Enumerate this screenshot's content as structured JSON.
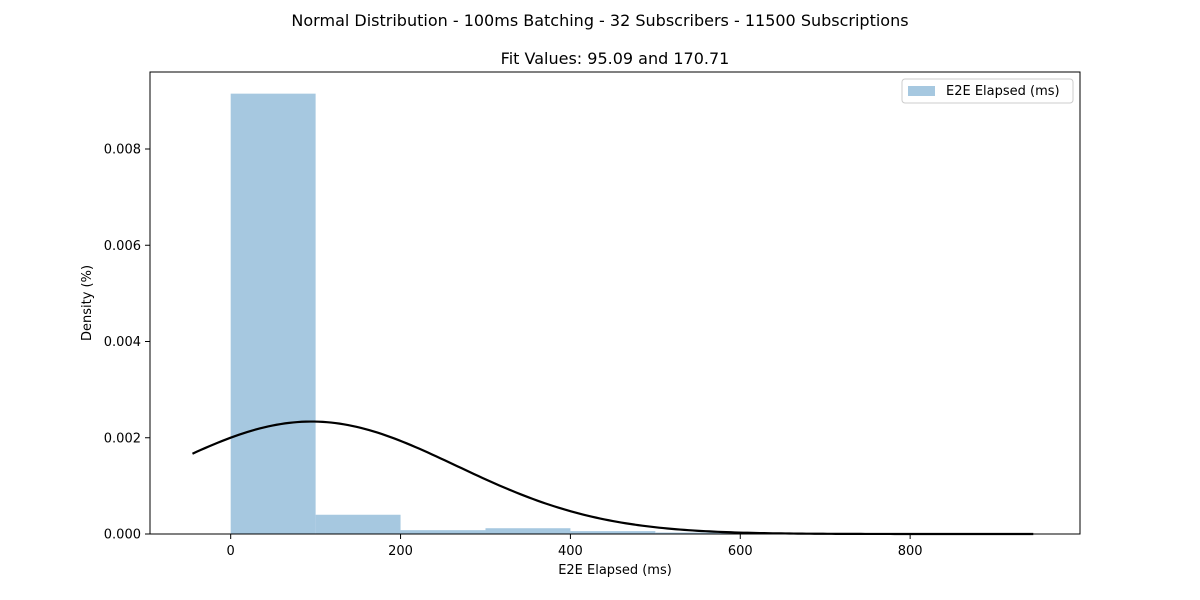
{
  "chart_data": {
    "type": "bar",
    "suptitle": "Normal Distribution - 100ms Batching - 32 Subscribers - 11500 Subscriptions",
    "title": "Fit Values: 95.09 and 170.71",
    "xlabel": "E2E Elapsed (ms)",
    "ylabel": "Density (%)",
    "xlim": [
      -95,
      1000
    ],
    "ylim": [
      0,
      0.0096
    ],
    "xticks": [
      0,
      200,
      400,
      600,
      800
    ],
    "xtick_labels": [
      "0",
      "200",
      "400",
      "600",
      "800"
    ],
    "yticks": [
      0,
      0.002,
      0.004,
      0.006,
      0.008
    ],
    "ytick_labels": [
      "0.000",
      "0.002",
      "0.004",
      "0.006",
      "0.008"
    ],
    "bins": [
      {
        "x0": 0,
        "x1": 100,
        "value": 0.00915
      },
      {
        "x0": 100,
        "x1": 200,
        "value": 0.0004
      },
      {
        "x0": 200,
        "x1": 300,
        "value": 8e-05
      },
      {
        "x0": 300,
        "x1": 400,
        "value": 0.00012
      },
      {
        "x0": 400,
        "x1": 500,
        "value": 6e-05
      },
      {
        "x0": 500,
        "x1": 600,
        "value": 3e-05
      },
      {
        "x0": 600,
        "x1": 700,
        "value": 2e-05
      },
      {
        "x0": 700,
        "x1": 800,
        "value": 1e-05
      },
      {
        "x0": 800,
        "x1": 900,
        "value": 1e-05
      }
    ],
    "fit": {
      "mean": 95.09,
      "std": 170.71,
      "x_start": -45,
      "x_end": 945
    },
    "legend": {
      "entries": [
        "E2E Elapsed (ms)"
      ],
      "placement": "top-right"
    },
    "grid": false,
    "colors": {
      "bar": "#a6c8e0",
      "fit_line": "#000000"
    }
  }
}
